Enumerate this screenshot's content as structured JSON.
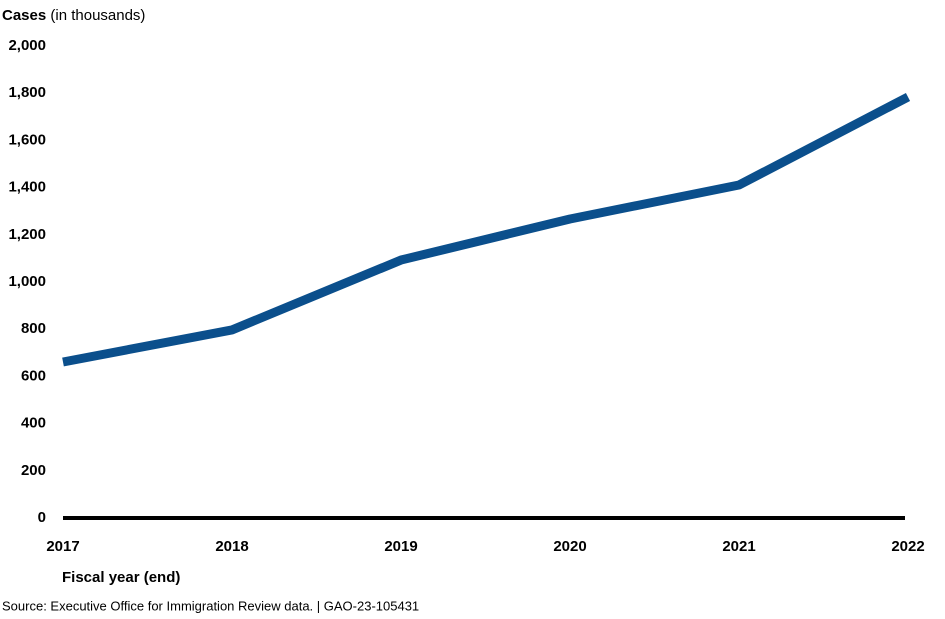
{
  "chart_data": {
    "type": "line",
    "y_label_bold": "Cases",
    "y_label_rest": "(in thousands)",
    "x_label": "Fiscal year (end)",
    "source": "Source: Executive Office for Immigration Review data.  |  GAO-23-105431",
    "categories": [
      "2017",
      "2018",
      "2019",
      "2020",
      "2021",
      "2022"
    ],
    "series": [
      {
        "name": "Cases",
        "color": "#0b4f8c",
        "values": [
          661,
          797,
          1093,
          1267,
          1411,
          1784
        ]
      }
    ],
    "ylim": [
      0,
      2000
    ],
    "yticks": [
      0,
      200,
      400,
      600,
      800,
      {
        "value": 1000,
        "label": "1,000"
      },
      {
        "value": 1200,
        "label": "1,200"
      },
      {
        "value": 1400,
        "label": "1,400"
      },
      {
        "value": 1600,
        "label": "1,600"
      },
      {
        "value": 1800,
        "label": "1,800"
      },
      {
        "value": 2000,
        "label": "2,000"
      }
    ],
    "grid": false
  }
}
